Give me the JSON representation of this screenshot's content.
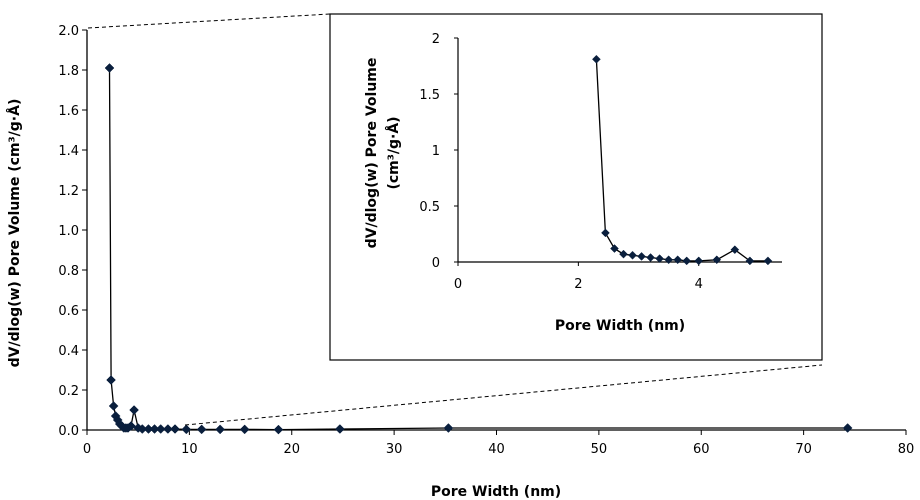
{
  "chart_data": [
    {
      "type": "line",
      "role": "main",
      "xlabel": "Pore Width (nm)",
      "ylabel": "dV/dlog(w) Pore Volume (cm³/g·Å)",
      "xlim": [
        0,
        80
      ],
      "ylim": [
        0,
        2.0
      ],
      "x_ticks": [
        "0",
        "10",
        "20",
        "30",
        "40",
        "50",
        "60",
        "70",
        "80"
      ],
      "y_ticks": [
        "0.0",
        "0.2",
        "0.4",
        "0.6",
        "0.8",
        "1.0",
        "1.2",
        "1.4",
        "1.6",
        "1.8",
        "2.0"
      ],
      "grid": false,
      "marker": "diamond",
      "color": "#0a1f3d",
      "series": [
        {
          "x": [
            2.2,
            2.35,
            2.6,
            2.8,
            3.0,
            3.2,
            3.4,
            3.6,
            3.8,
            4.0,
            4.3,
            4.6,
            5.0,
            5.4,
            6.0,
            6.6,
            7.2,
            7.9,
            8.6,
            9.7,
            11.2,
            13.0,
            15.4,
            18.7,
            24.7,
            35.3,
            74.3
          ],
          "y": [
            1.81,
            0.25,
            0.12,
            0.07,
            0.05,
            0.03,
            0.02,
            0.01,
            0.01,
            0.01,
            0.02,
            0.1,
            0.01,
            0.005,
            0.005,
            0.005,
            0.005,
            0.005,
            0.005,
            0.003,
            0.003,
            0.003,
            0.003,
            0.002,
            0.005,
            0.01,
            0.01
          ]
        }
      ]
    },
    {
      "type": "line",
      "role": "inset",
      "xlabel": "Pore Width (nm)",
      "ylabel_lines": [
        "dV/dlog(w) Pore Volume",
        "(cm³/g·Å)"
      ],
      "xlim": [
        0,
        5.5
      ],
      "ylim": [
        0,
        2
      ],
      "x_ticks": [
        "0",
        "2",
        "4"
      ],
      "y_ticks": [
        "0",
        "0.5",
        "1",
        "1.5",
        "2"
      ],
      "grid": false,
      "marker": "diamond",
      "color": "#0a1f3d",
      "series": [
        {
          "x": [
            2.3,
            2.45,
            2.6,
            2.75,
            2.9,
            3.05,
            3.2,
            3.35,
            3.5,
            3.65,
            3.8,
            4.0,
            4.3,
            4.6,
            4.85,
            5.15
          ],
          "y": [
            1.81,
            0.26,
            0.12,
            0.07,
            0.06,
            0.05,
            0.04,
            0.03,
            0.02,
            0.02,
            0.01,
            0.01,
            0.02,
            0.11,
            0.01,
            0.01
          ]
        }
      ]
    }
  ]
}
